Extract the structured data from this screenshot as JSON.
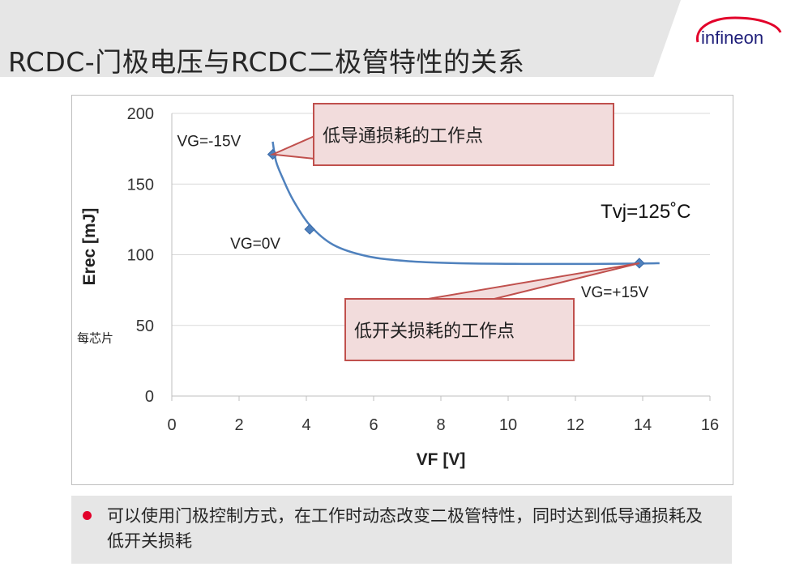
{
  "title": "RCDC-门极电压与RCDC二极管特性的关系",
  "logo_text": "infineon",
  "colors": {
    "brand_red": "#e2002a",
    "curve": "#4f81bd",
    "callout_fill": "#f2dcdc",
    "callout_border": "#c0504d"
  },
  "chart_data": {
    "type": "line",
    "title": "",
    "xlabel": "VF [V]",
    "ylabel": "Erec [mJ]",
    "y_unit_note": "每芯片",
    "xlim": [
      0,
      16
    ],
    "ylim": [
      0,
      200
    ],
    "x_ticks": [
      "0",
      "2",
      "4",
      "6",
      "8",
      "10",
      "12",
      "14",
      "16"
    ],
    "y_ticks": [
      "0",
      "50",
      "100",
      "150",
      "200"
    ],
    "grid": "horizontal",
    "series": [
      {
        "curve": [
          [
            3.0,
            180
          ],
          [
            3.1,
            166
          ],
          [
            3.3,
            154
          ],
          [
            3.6,
            139
          ],
          [
            4.1,
            121
          ],
          [
            4.8,
            107
          ],
          [
            5.8,
            99
          ],
          [
            7.0,
            95.5
          ],
          [
            8.5,
            94
          ],
          [
            10.5,
            93.5
          ],
          [
            12.5,
            93.5
          ],
          [
            14.0,
            93.8
          ],
          [
            14.5,
            94
          ]
        ],
        "points": [
          {
            "x": 3.0,
            "y": 171,
            "label": "VG=-15V"
          },
          {
            "x": 4.1,
            "y": 118,
            "label": "VG=0V"
          },
          {
            "x": 13.9,
            "y": 94,
            "label": "VG=+15V"
          }
        ]
      }
    ],
    "annotations": {
      "temperature": "Tvj=125˚C",
      "callout_low_conduction": "低导通损耗的工作点",
      "callout_low_switching": "低开关损耗的工作点"
    }
  },
  "bullet": {
    "text": "可以使用门极控制方式，在工作时动态改变二极管特性，同时达到低导通损耗及低开关损耗"
  }
}
